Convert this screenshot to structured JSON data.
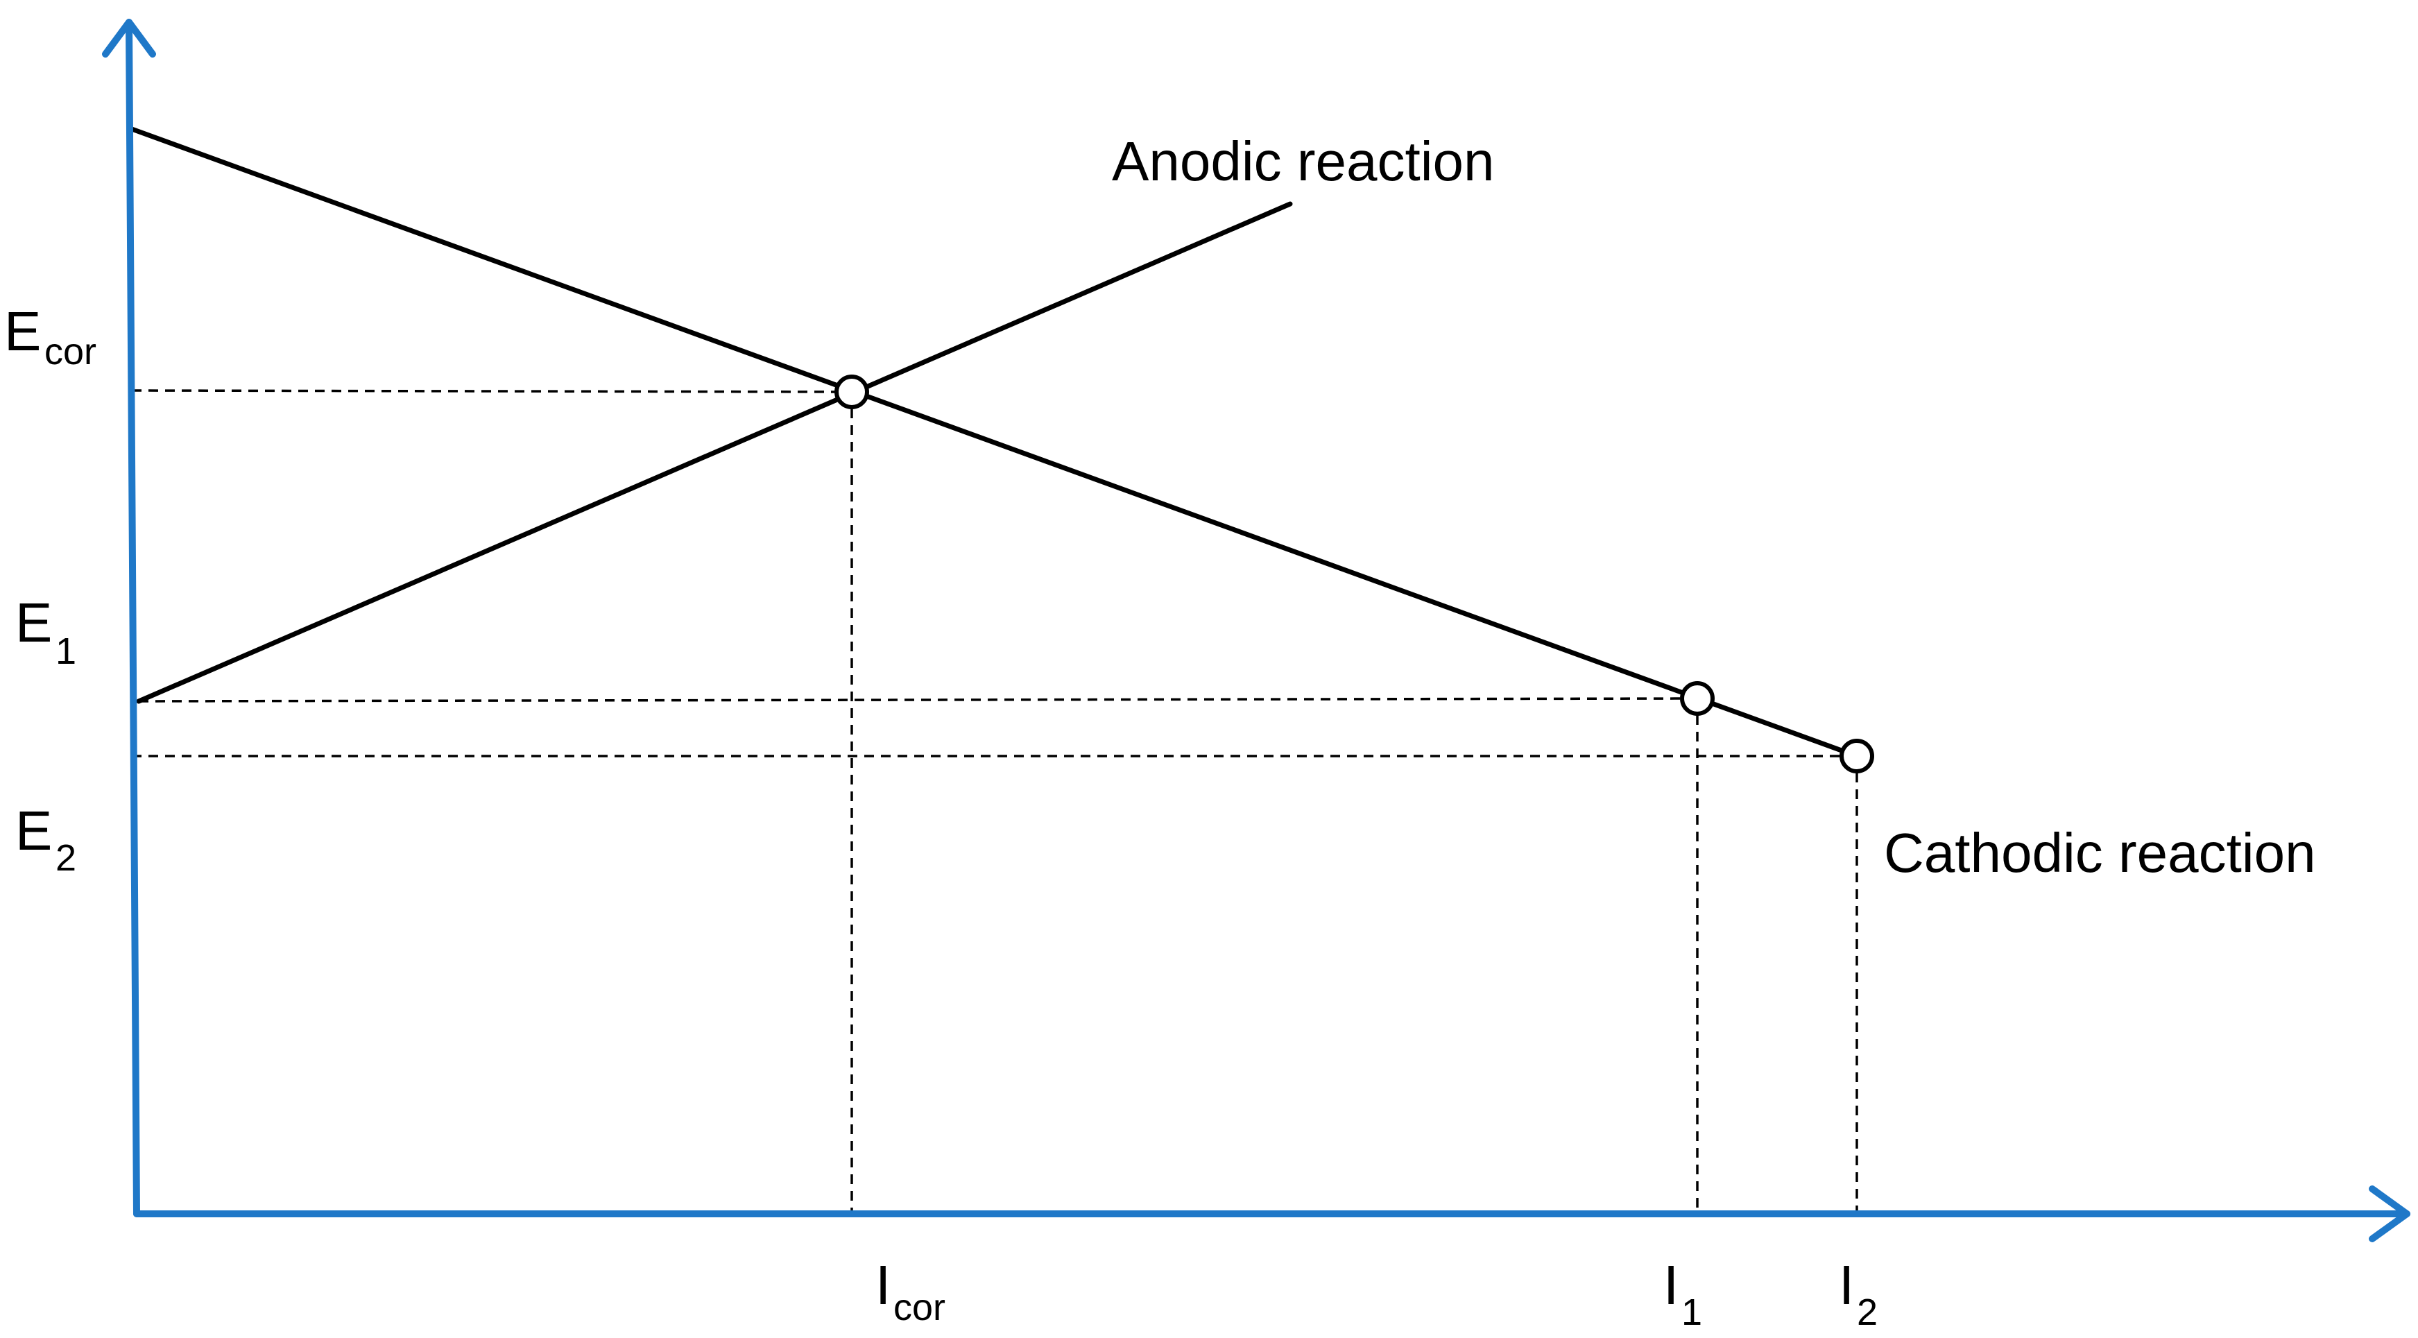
{
  "colors": {
    "axis": "#1f78c8",
    "line": "#000000",
    "point_fill": "#ffffff"
  },
  "labels": {
    "anodic": "Anodic reaction",
    "cathodic": "Cathodic reaction",
    "e_cor": {
      "main": "E",
      "sub": "cor"
    },
    "e_1": {
      "main": "E",
      "sub": "1"
    },
    "e_2": {
      "main": "E",
      "sub": "2"
    },
    "i_cor": {
      "main": "I",
      "sub": "cor"
    },
    "i_1": {
      "main": "I",
      "sub": "1"
    },
    "i_2": {
      "main": "I",
      "sub": "2"
    }
  }
}
